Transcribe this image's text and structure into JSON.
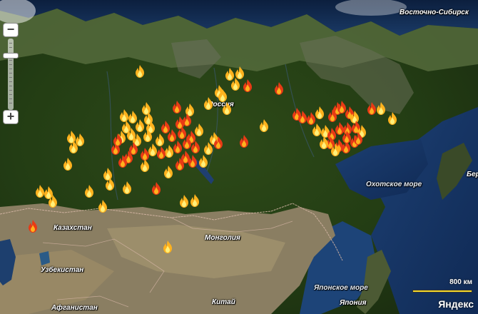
{
  "map": {
    "labels": {
      "region_east": "Восточно-Сибирск",
      "russia": "Россия",
      "kazakhstan": "Казахстан",
      "mongolia": "Монголия",
      "uzbekistan": "Узбекистан",
      "afghanistan": "Афганистан",
      "china": "Китай",
      "okhotsk_sea": "Охотское море",
      "sea_of_japan": "Японское море",
      "japan": "Япония",
      "edge_label": "Бер"
    },
    "scale_label": "800 км",
    "logo_text": "Яндекс",
    "zoom": {
      "in_symbol": "+",
      "out_symbol": "−"
    },
    "fire_icon": "fire-icon",
    "colors": {
      "fire_orange": "#ffb21e",
      "fire_red": "#e83a15",
      "scale_bar": "#f3d72b"
    }
  }
}
